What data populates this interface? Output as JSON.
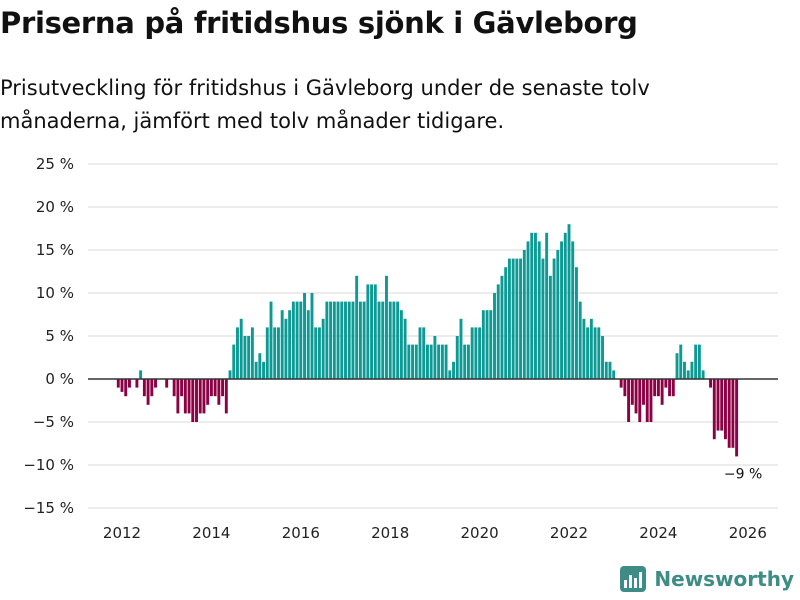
{
  "title": "Priserna på fritidshus sjönk i Gävleborg",
  "subtitle": "Prisutveckling för fritidshus i Gävleborg under de senaste tolv månaderna, jämfört med tolv månader tidigare.",
  "logo_text": "Newsworthy",
  "colors": {
    "positive": "#0e9a94",
    "negative": "#8c0044",
    "grid": "#d9d9d9",
    "zero": "#333333"
  },
  "chart_data": {
    "type": "bar",
    "x_start": "2011-12",
    "x_end": "2025-12",
    "ylim": [
      -15,
      25
    ],
    "y_ticks": [
      25,
      20,
      15,
      10,
      5,
      0,
      -5,
      -10,
      -15
    ],
    "y_tick_labels": [
      "25 %",
      "20 %",
      "15 %",
      "10 %",
      "5 %",
      "0 %",
      "−5 %",
      "−10 %",
      "−15 %"
    ],
    "x_ticks": [
      "2012",
      "2014",
      "2016",
      "2018",
      "2020",
      "2022",
      "2024",
      "2026"
    ],
    "xlabel": "",
    "ylabel": "",
    "annotation": {
      "text": "−9 %",
      "month": "2025-12",
      "value": -9
    },
    "values": [
      -1,
      -1.5,
      -2,
      -1,
      0,
      -1,
      1,
      -2,
      -3,
      -2,
      -1,
      0,
      0,
      -1,
      0,
      -2,
      -4,
      -2,
      -4,
      -4,
      -5,
      -5,
      -4,
      -4,
      -3,
      -2,
      -2,
      -3,
      -2,
      -4,
      1,
      4,
      6,
      7,
      5,
      5,
      6,
      2,
      3,
      2,
      6,
      9,
      6,
      6,
      8,
      7,
      8,
      9,
      9,
      9,
      10,
      8,
      10,
      6,
      6,
      7,
      9,
      9,
      9,
      9,
      9,
      9,
      9,
      9,
      12,
      9,
      9,
      11,
      11,
      11,
      9,
      9,
      12,
      9,
      9,
      9,
      8,
      7,
      4,
      4,
      4,
      6,
      6,
      4,
      4,
      5,
      4,
      4,
      4,
      1,
      2,
      5,
      7,
      4,
      4,
      6,
      6,
      6,
      8,
      8,
      8,
      10,
      11,
      12,
      13,
      14,
      14,
      14,
      14,
      15,
      16,
      17,
      17,
      16,
      14,
      17,
      12,
      14,
      15,
      16,
      17,
      18,
      16,
      13,
      9,
      7,
      6,
      7,
      6,
      6,
      5,
      2,
      2,
      1,
      0,
      -1,
      -2,
      -5,
      -3,
      -4,
      -5,
      -3,
      -5,
      -5,
      -2,
      -2,
      -3,
      -1,
      -2,
      -2,
      3,
      4,
      2,
      1,
      2,
      4,
      4,
      1,
      0,
      -1,
      -7,
      -6,
      -6,
      -7,
      -8,
      -8,
      -9
    ]
  }
}
